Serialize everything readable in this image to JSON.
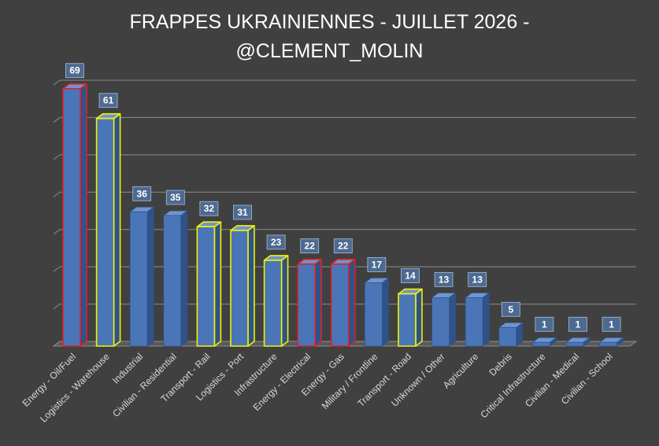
{
  "chart_data": {
    "type": "bar",
    "title_line1": "FRAPPES UKRAINIENNES - JUILLET 2026 -",
    "title_line2": "@CLEMENT_MOLIN",
    "categories": [
      "Energy - Oil/Fuel",
      "Logistics - Warehouse",
      "Industrial",
      "Civilian - Residential",
      "Transport - Rail",
      "Logistics - Port",
      "Infrastructure",
      "Energy - Electrical",
      "Energy - Gas",
      "Military / Frontline",
      "Transport - Road",
      "Unknown / Other",
      "Agriculture",
      "Debris",
      "Critical Infrastructure",
      "Civilian - Medical",
      "Civilian - School"
    ],
    "values": [
      69,
      61,
      36,
      35,
      32,
      31,
      23,
      22,
      22,
      17,
      14,
      13,
      13,
      5,
      1,
      1,
      1
    ],
    "outline": [
      "red",
      "yellow",
      "none",
      "none",
      "yellow",
      "yellow",
      "yellow",
      "red",
      "red",
      "none",
      "yellow",
      "none",
      "none",
      "none",
      "none",
      "none",
      "none"
    ],
    "ylim": [
      0,
      70
    ],
    "grid": true,
    "legend": false,
    "colors": {
      "background": "#404040",
      "bar_front": "#4a76b8",
      "bar_side": "#2f5288",
      "bar_top": "#6f95cc",
      "red_outline": "#e0202a",
      "yellow_outline": "#f2f200",
      "gridline": "#8c8c8c",
      "label_box": "#4d6a91"
    }
  }
}
